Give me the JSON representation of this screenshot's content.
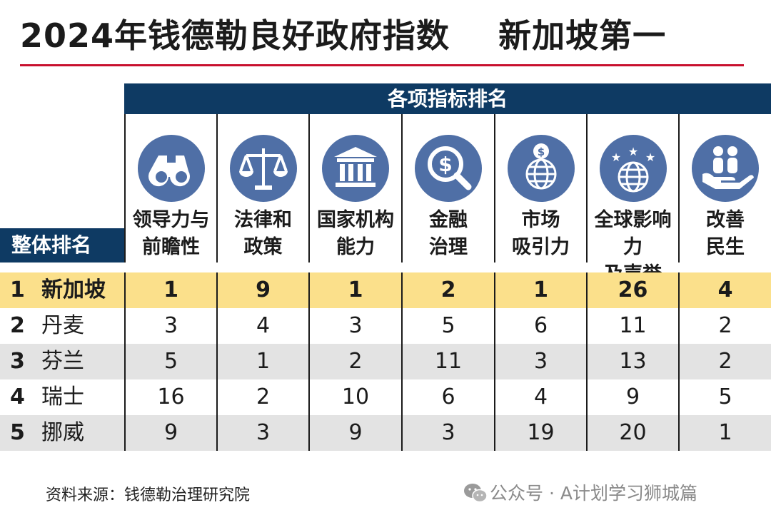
{
  "title": "2024年钱德勒良好政府指数    新加坡第一",
  "header_bar": "各项指标排名",
  "overall_label": "整体排名",
  "colors": {
    "navy": "#0e3a63",
    "icon_circle": "#4f6fa6",
    "highlight": "#fbe08b",
    "accent_red": "#c8102e",
    "stripe": "#e3e3e3"
  },
  "chart_data": {
    "type": "table",
    "title": "2024年钱德勒良好政府指数    新加坡第一",
    "group_header": "各项指标排名",
    "columns": [
      {
        "label": [
          "领导力与",
          "前瞻性"
        ],
        "icon": "binoculars-icon"
      },
      {
        "label": [
          "法律和",
          "政策"
        ],
        "icon": "scales-icon"
      },
      {
        "label": [
          "国家机构",
          "能力"
        ],
        "icon": "institution-building-icon"
      },
      {
        "label": [
          "金融",
          "治理"
        ],
        "icon": "dollar-magnifier-icon"
      },
      {
        "label": [
          "市场",
          "吸引力"
        ],
        "icon": "globe-dollar-icon"
      },
      {
        "label": [
          "全球影响力",
          "及声誉"
        ],
        "icon": "globe-stars-icon"
      },
      {
        "label": [
          "改善",
          "民生"
        ],
        "icon": "people-hand-icon"
      }
    ],
    "rows": [
      {
        "rank": "1",
        "country": "新加坡",
        "values": [
          1,
          9,
          1,
          2,
          1,
          26,
          4
        ],
        "highlight": true
      },
      {
        "rank": "2",
        "country": "丹麦",
        "values": [
          3,
          4,
          3,
          5,
          6,
          11,
          2
        ]
      },
      {
        "rank": "3",
        "country": "芬兰",
        "values": [
          5,
          1,
          2,
          11,
          3,
          13,
          2
        ]
      },
      {
        "rank": "4",
        "country": "瑞士",
        "values": [
          16,
          2,
          10,
          6,
          4,
          9,
          5
        ]
      },
      {
        "rank": "5",
        "country": "挪威",
        "values": [
          9,
          3,
          9,
          3,
          19,
          20,
          1
        ]
      }
    ]
  },
  "footer": {
    "source": "资料来源：钱德勒治理研究院",
    "watermark": "公众号 · A计划学习狮城篇",
    "watermark_icon": "wechat-icon"
  }
}
